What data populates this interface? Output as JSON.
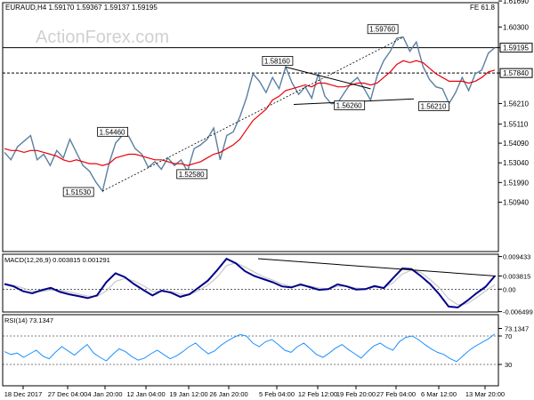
{
  "header": {
    "symbol": "EURAUD,H4",
    "ohlc": "1.59170 1.59367 1.59137 1.59195",
    "corner": "FE 61.8"
  },
  "watermark": "ActionForex.com",
  "colors": {
    "price": "#5a7fa0",
    "ma": "#e8000b",
    "macd": "#00008b",
    "signal": "#c8c8c8",
    "rsi": "#1e90ff",
    "trendline": "#000000",
    "watermark": "#d0d0d0"
  },
  "chart_data": [
    {
      "type": "line",
      "title": "",
      "series": [
        {
          "values": [
            1.536,
            1.532,
            1.539,
            1.542,
            1.545,
            1.532,
            1.535,
            1.529,
            1.537,
            1.533,
            1.543,
            1.536,
            1.529,
            1.526,
            1.52,
            1.5153,
            1.53,
            1.541,
            1.545,
            1.5446,
            1.538,
            1.535,
            1.528,
            1.531,
            1.527,
            1.533,
            1.529,
            1.532,
            1.5258,
            1.538,
            1.54,
            1.543,
            1.549,
            1.532,
            1.545,
            1.547,
            1.555,
            1.565,
            1.578,
            1.574,
            1.568,
            1.576,
            1.57,
            1.5816,
            1.573,
            1.567,
            1.571,
            1.565,
            1.578,
            1.566,
            1.562,
            1.5626,
            1.568,
            1.573,
            1.576,
            1.57,
            1.564,
            1.577,
            1.585,
            1.59,
            1.597,
            1.5976,
            1.59,
            1.595,
            1.582,
            1.575,
            1.571,
            1.57,
            1.5621,
            1.568,
            1.576,
            1.569,
            1.578,
            1.58,
            1.589,
            1.59195
          ]
        },
        {
          "values": [
            1.538,
            1.537,
            1.537,
            1.536,
            1.537,
            1.537,
            1.536,
            1.535,
            1.534,
            1.532,
            1.531,
            1.532,
            1.531,
            1.53,
            1.53,
            1.529,
            1.53,
            1.533,
            1.534,
            1.535,
            1.535,
            1.534,
            1.533,
            1.532,
            1.532,
            1.531,
            1.53,
            1.53,
            1.529,
            1.53,
            1.531,
            1.533,
            1.535,
            1.536,
            1.538,
            1.54,
            1.543,
            1.548,
            1.553,
            1.556,
            1.559,
            1.564,
            1.566,
            1.569,
            1.57,
            1.571,
            1.572,
            1.571,
            1.573,
            1.573,
            1.572,
            1.571,
            1.571,
            1.572,
            1.573,
            1.573,
            1.572,
            1.573,
            1.576,
            1.579,
            1.583,
            1.585,
            1.584,
            1.585,
            1.584,
            1.581,
            1.578,
            1.576,
            1.574,
            1.574,
            1.574,
            1.573,
            1.574,
            1.576,
            1.579,
            1.58
          ]
        }
      ],
      "ylim": [
        1.483,
        1.616
      ],
      "y_ticks": [
        "1.61690",
        "1.60300",
        "1.59195",
        "1.57840",
        "1.56210",
        "1.55110",
        "1.54090",
        "1.53040",
        "1.51990",
        "1.50940"
      ],
      "horizontal_lines": [
        1.59195,
        1.5784
      ],
      "data_labels": [
        "1.51530",
        "1.54460",
        "1.52580",
        "1.58160",
        "1.56260",
        "1.59760",
        "1.56210"
      ]
    },
    {
      "type": "line",
      "title": "MACD(12,26,9) 0.003815 0.001291",
      "series": [
        {
          "values": [
            0.0015,
            0.0008,
            -0.0006,
            -0.0012,
            -0.0003,
            0.0004,
            -0.0008,
            -0.0015,
            -0.002,
            -0.0026,
            -0.0018,
            0.002,
            0.0046,
            0.0035,
            0.0015,
            -0.0002,
            -0.0018,
            -0.0004,
            -0.001,
            -0.0022,
            -0.0015,
            0.0005,
            0.0025,
            0.0055,
            0.0088,
            0.0075,
            0.0052,
            0.0038,
            0.0029,
            0.002,
            0.0008,
            0.0005,
            0.0014,
            0.0006,
            -0.0002,
            0.0,
            0.0014,
            0.0008,
            -0.0001,
            0.0,
            0.0009,
            0.0003,
            0.0032,
            0.006,
            0.0058,
            0.0038,
            0.0015,
            -0.0015,
            -0.005,
            -0.0053,
            -0.0034,
            -0.0012,
            0.0007,
            0.0038
          ]
        },
        {
          "values": [
            0.0016,
            0.0011,
            0.0003,
            -0.0005,
            -0.0007,
            -0.0002,
            -0.0003,
            -0.0008,
            -0.0014,
            -0.002,
            -0.0021,
            -0.0005,
            0.0022,
            0.0031,
            0.0024,
            0.001,
            -0.0006,
            -0.0008,
            -0.0007,
            -0.0014,
            -0.0016,
            -0.0004,
            0.0012,
            0.0035,
            0.0068,
            0.0076,
            0.0064,
            0.0049,
            0.0036,
            0.0026,
            0.0015,
            0.0008,
            0.001,
            0.0009,
            0.0003,
            0.0001,
            0.0008,
            0.0009,
            0.0003,
            0.0001,
            0.0005,
            0.0005,
            0.0018,
            0.0044,
            0.0055,
            0.0048,
            0.0028,
            0.0004,
            -0.0028,
            -0.0045,
            -0.0042,
            -0.0025,
            -0.0005,
            0.0013
          ]
        }
      ],
      "ylim": [
        -0.0066,
        0.0101
      ],
      "y_ticks": [
        "0.009433",
        "0.003815",
        "0.00",
        "-0.006499"
      ]
    },
    {
      "type": "line",
      "title": "RSI(14) 73.1347",
      "series": [
        {
          "values": [
            48,
            44,
            46,
            40,
            45,
            50,
            42,
            38,
            47,
            55,
            49,
            43,
            51,
            58,
            46,
            40,
            35,
            44,
            52,
            48,
            41,
            36,
            39,
            45,
            50,
            44,
            38,
            42,
            48,
            55,
            60,
            52,
            45,
            49,
            57,
            63,
            68,
            72,
            70,
            60,
            55,
            62,
            65,
            58,
            50,
            47,
            55,
            60,
            52,
            44,
            40,
            46,
            53,
            58,
            51,
            45,
            39,
            48,
            56,
            60,
            54,
            50,
            62,
            68,
            70,
            65,
            58,
            52,
            47,
            44,
            38,
            34,
            42,
            50,
            56,
            61,
            66,
            73
          ]
        }
      ],
      "ylim": [
        0,
        100
      ],
      "y_ticks": [
        "73.1347",
        "70",
        "30"
      ]
    }
  ],
  "x_ticks": [
    "18 Dec 2017",
    "27 Dec 04:00",
    "4 Jan 20:00",
    "12 Jan 04:00",
    "19 Jan 12:00",
    "26 Jan 20:00",
    "5 Feb 04:00",
    "12 Feb 12:00",
    "19 Feb 20:00",
    "27 Feb 04:00",
    "6 Mar 12:00",
    "13 Mar 20:00"
  ]
}
